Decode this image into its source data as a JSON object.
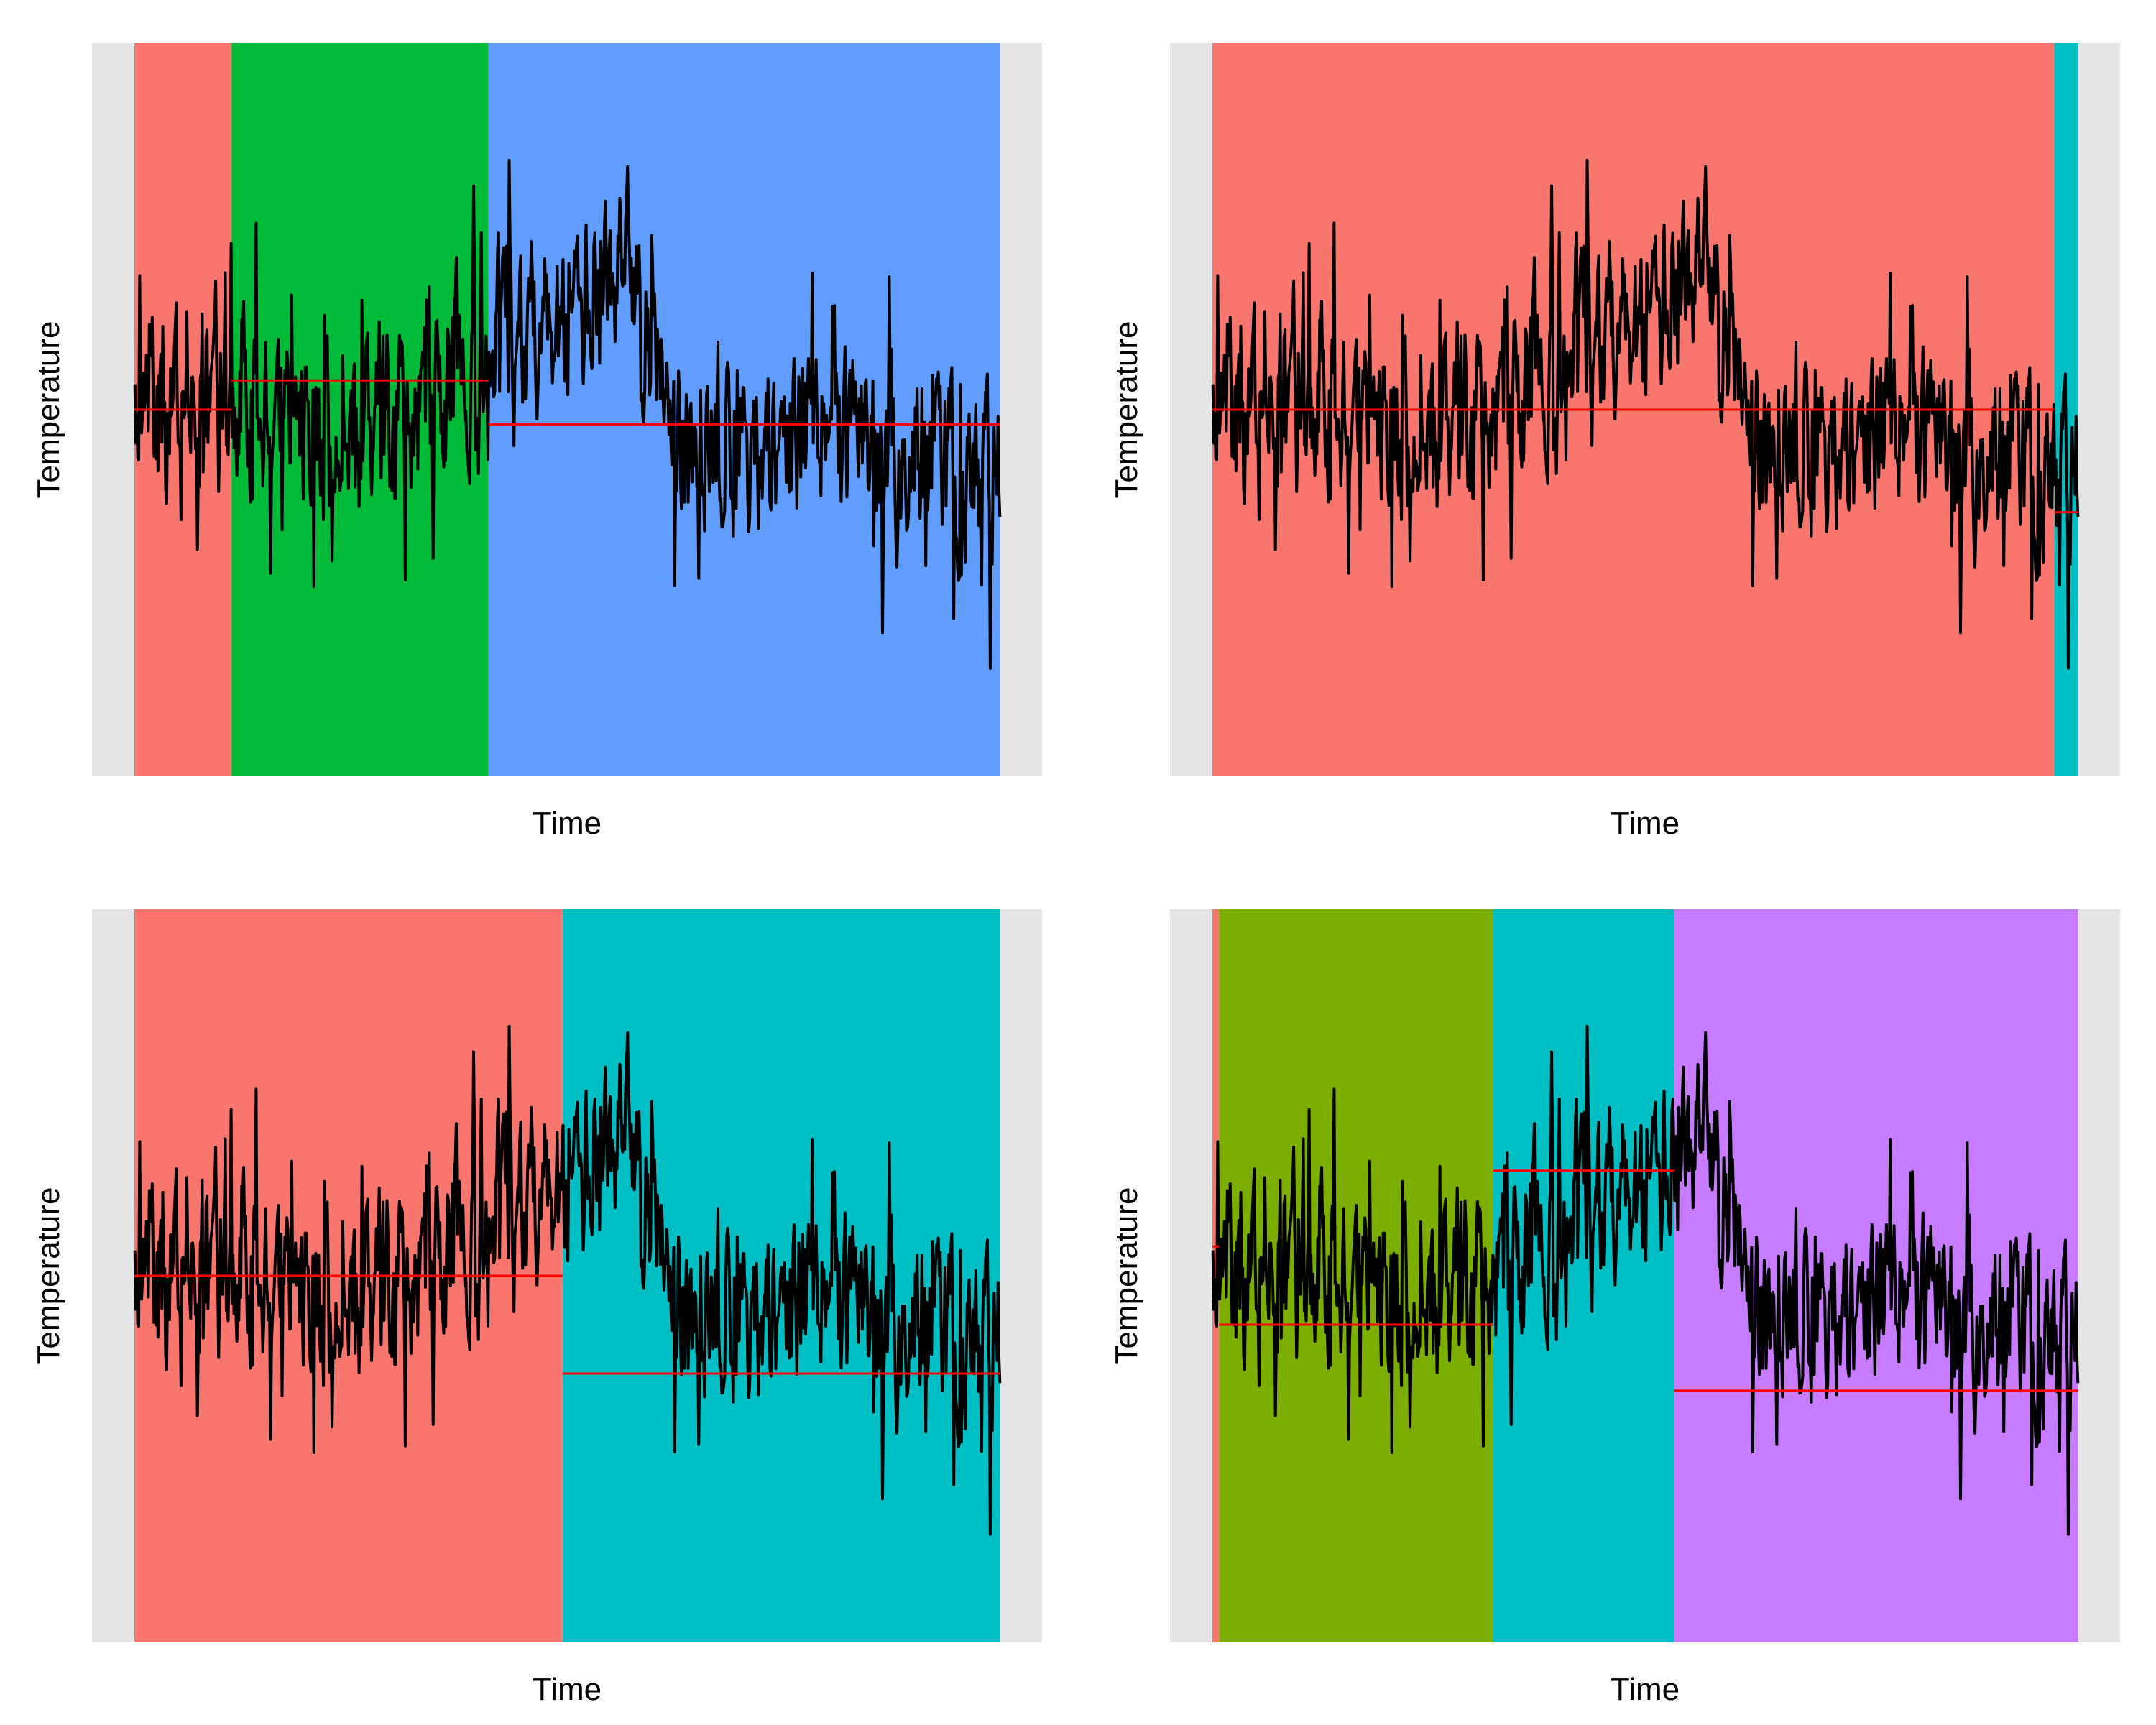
{
  "chart_data": [
    {
      "type": "line",
      "xlabel": "Time",
      "ylabel": "Temperature",
      "n_points": 900,
      "segments": [
        {
          "start": 0,
          "end": 101,
          "color": "#F8766D",
          "mean": 0.0
        },
        {
          "start": 101,
          "end": 368,
          "color": "#00BA38",
          "mean": 0.12
        },
        {
          "start": 368,
          "end": 900,
          "color": "#619CFF",
          "mean": -0.06
        }
      ]
    },
    {
      "type": "line",
      "xlabel": "Time",
      "ylabel": "Temperature",
      "n_points": 900,
      "segments": [
        {
          "start": 0,
          "end": 875,
          "color": "#F8766D",
          "mean": 0.0
        },
        {
          "start": 875,
          "end": 900,
          "color": "#00BFC4",
          "mean": -0.42
        }
      ]
    },
    {
      "type": "line",
      "xlabel": "Time",
      "ylabel": "Temperature",
      "n_points": 900,
      "segments": [
        {
          "start": 0,
          "end": 445,
          "color": "#F8766D",
          "mean": 0.0
        },
        {
          "start": 445,
          "end": 900,
          "color": "#00BFC4",
          "mean": -0.4
        }
      ]
    },
    {
      "type": "line",
      "xlabel": "Time",
      "ylabel": "Temperature",
      "n_points": 900,
      "segments": [
        {
          "start": 0,
          "end": 7,
          "color": "#F8766D",
          "mean": 0.12
        },
        {
          "start": 7,
          "end": 292,
          "color": "#7CAE00",
          "mean": -0.2
        },
        {
          "start": 292,
          "end": 480,
          "color": "#00BFC4",
          "mean": 0.43
        },
        {
          "start": 480,
          "end": 900,
          "color": "#C77CFF",
          "mean": -0.47
        }
      ]
    }
  ]
}
